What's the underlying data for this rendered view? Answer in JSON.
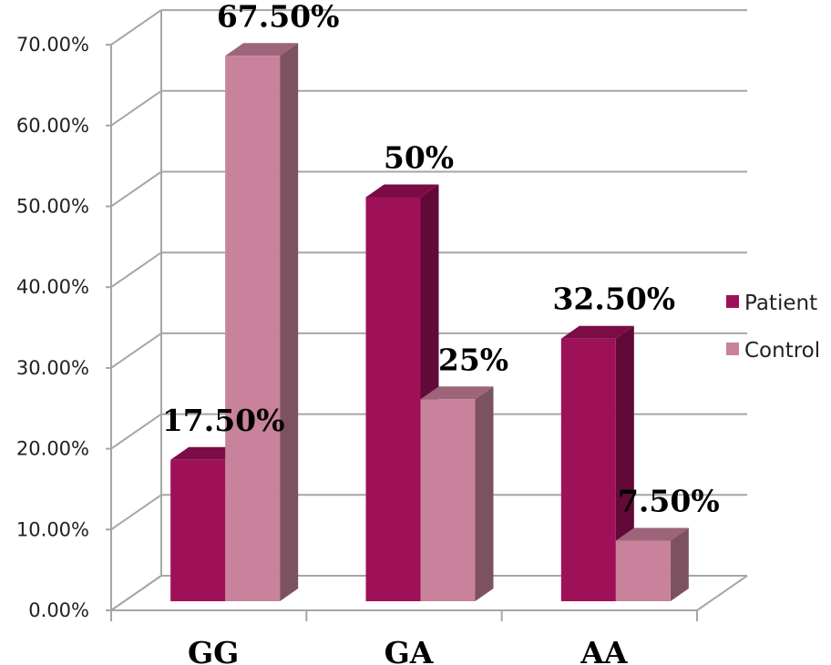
{
  "chart_data": {
    "type": "bar",
    "categories": [
      "GG",
      "GA",
      "AA"
    ],
    "series": [
      {
        "name": "Patient",
        "values": [
          17.5,
          50,
          32.5
        ],
        "labels": [
          "17.50%",
          "50%",
          "32.50%"
        ],
        "color": "#9e1058"
      },
      {
        "name": "Control",
        "values": [
          67.5,
          25,
          7.5
        ],
        "labels": [
          "67.50%",
          "25%",
          "7.50%"
        ],
        "color": "#c8829b"
      }
    ],
    "yticks": [
      "0.00%",
      "10.00%",
      "20.00%",
      "30.00%",
      "40.00%",
      "50.00%",
      "60.00%",
      "70.00%"
    ],
    "ylim": [
      0,
      70
    ],
    "grid": true,
    "legend": "right",
    "three_d": true
  }
}
